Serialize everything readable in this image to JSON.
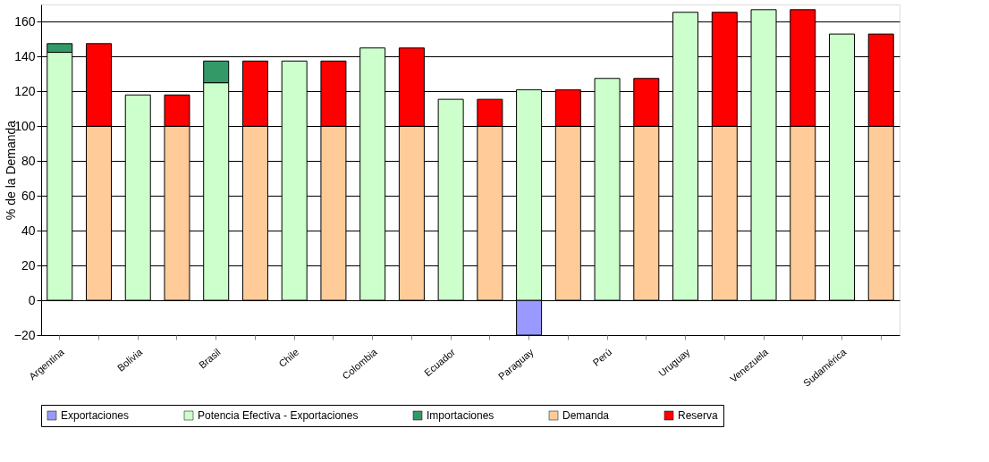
{
  "chart_data": {
    "type": "bar",
    "stacked": true,
    "ylabel": "% de la Demanda",
    "categories": [
      "Argentina",
      null,
      "Bolivia",
      null,
      "Brasil",
      null,
      "Chile",
      null,
      "Colombia",
      null,
      "Ecuador",
      null,
      "Paraguay",
      null,
      "Perú",
      null,
      "Uruguay",
      null,
      "Venezuela",
      null,
      "Sudamérica",
      null
    ],
    "series": [
      {
        "name": "Exportaciones",
        "color": "#9999ff",
        "values": [
          null,
          null,
          null,
          null,
          null,
          null,
          null,
          null,
          null,
          null,
          null,
          null,
          -20,
          null,
          null,
          null,
          null,
          null,
          null,
          null,
          null,
          null
        ]
      },
      {
        "name": "Potencia Efectiva - Exportaciones",
        "color": "#ccffcc",
        "values": [
          142.5,
          null,
          118,
          null,
          125,
          null,
          137.5,
          null,
          145,
          null,
          115.5,
          null,
          121,
          null,
          127.5,
          null,
          165.5,
          null,
          167,
          null,
          153,
          null
        ]
      },
      {
        "name": "Importaciones",
        "color": "#339966",
        "values": [
          5,
          null,
          null,
          null,
          12.5,
          null,
          null,
          null,
          null,
          null,
          null,
          null,
          null,
          null,
          null,
          null,
          null,
          null,
          null,
          null,
          null,
          null
        ]
      },
      {
        "name": "Demanda",
        "color": "#ffcc99",
        "values": [
          null,
          100,
          null,
          100,
          null,
          100,
          null,
          100,
          null,
          100,
          null,
          100,
          null,
          100,
          null,
          100,
          null,
          100,
          null,
          100,
          null,
          100
        ]
      },
      {
        "name": "Reserva",
        "color": "#ff0000",
        "values": [
          null,
          47.5,
          null,
          18,
          null,
          37.5,
          null,
          37.5,
          null,
          45,
          null,
          15.5,
          null,
          21,
          null,
          27.5,
          null,
          65.5,
          null,
          67,
          null,
          53
        ]
      }
    ],
    "ylim": [
      -20,
      170
    ],
    "yticks": [
      -20,
      0,
      20,
      40,
      60,
      80,
      100,
      120,
      140,
      160
    ],
    "grid": "y",
    "legend": "bottom"
  }
}
